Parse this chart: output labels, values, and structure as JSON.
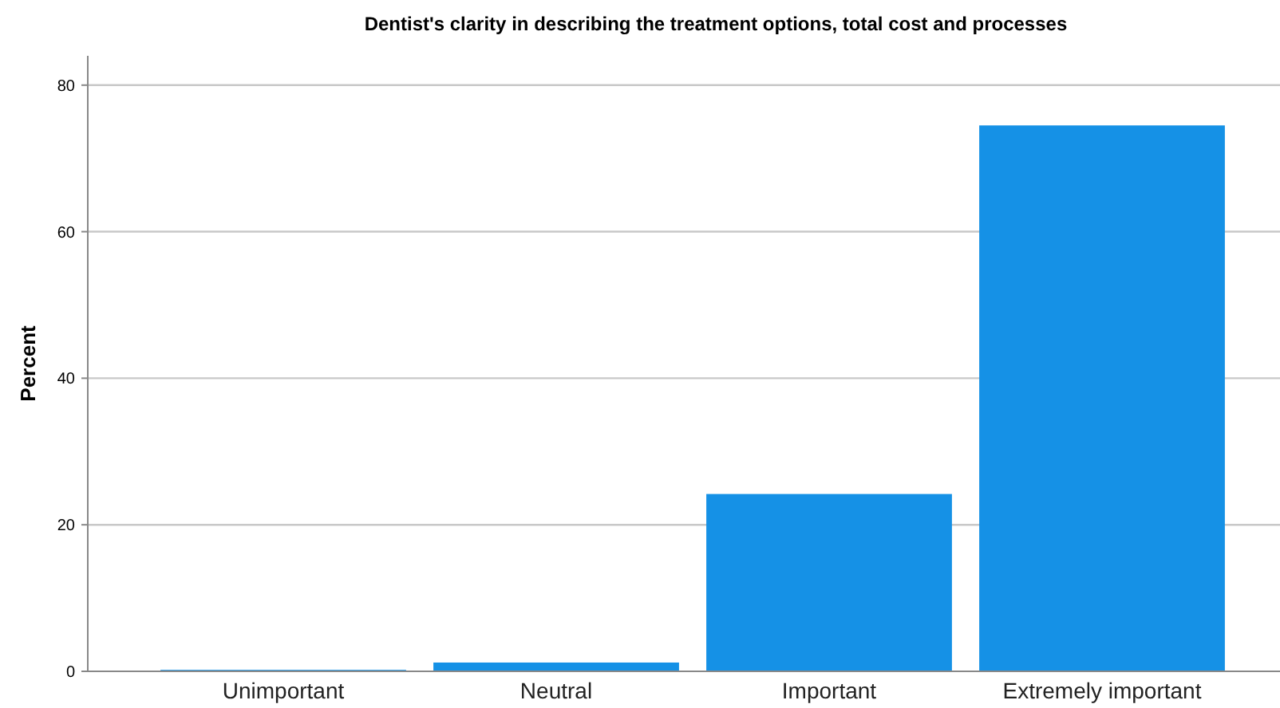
{
  "chart_data": {
    "type": "bar",
    "title": "Dentist's clarity in describing  the treatment options, total cost and processes",
    "ylabel": "Percent",
    "categories": [
      "Unimportant",
      "Neutral",
      "Important",
      "Extremely important"
    ],
    "values": [
      0.2,
      1.2,
      24.2,
      74.5
    ],
    "color": "#1591e6",
    "ylim": [
      0,
      84
    ],
    "yticks": [
      0,
      20,
      40,
      60,
      80
    ],
    "grid": "y"
  }
}
